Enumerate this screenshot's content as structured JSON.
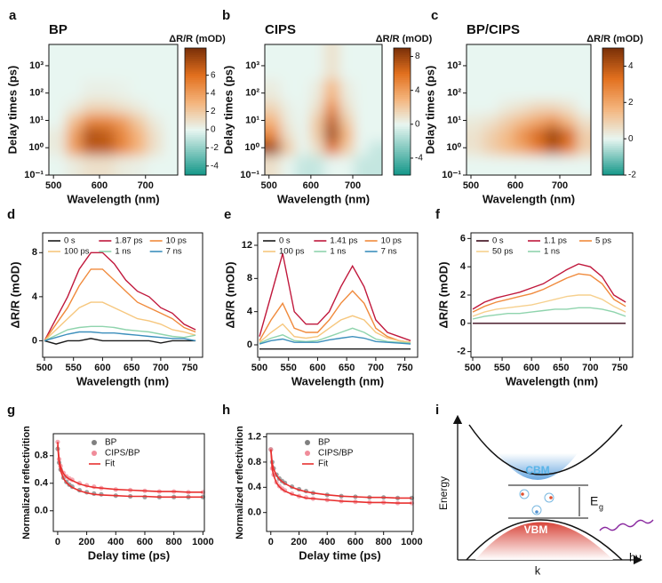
{
  "chart_data": [
    {
      "type": "heatmap",
      "panel": "a",
      "title": "BP",
      "x_label": "Wavelength (nm)",
      "y_label": "Delay times (ps)",
      "colorbar_label": "ΔR/R (mOD)",
      "x": [
        510,
        545,
        580,
        615,
        650,
        685,
        720,
        755
      ],
      "y": [
        0.3,
        1,
        3,
        10,
        30,
        100,
        1000
      ],
      "z": [
        [
          0,
          0.5,
          1,
          1,
          0.5,
          0.3,
          0,
          0
        ],
        [
          0.5,
          4,
          7,
          7,
          5,
          3,
          1,
          0
        ],
        [
          0.5,
          4,
          7.5,
          7,
          5,
          3,
          1,
          0
        ],
        [
          0,
          2.5,
          5,
          5,
          4,
          2,
          0.5,
          0
        ],
        [
          0,
          0.5,
          1.5,
          1.5,
          1,
          0.5,
          0,
          0
        ],
        [
          0,
          0,
          0.3,
          0.3,
          0.2,
          0,
          0,
          0
        ],
        [
          0,
          0,
          0,
          0,
          0,
          0,
          0,
          0
        ]
      ],
      "xlim": [
        490,
        770
      ],
      "ylim": [
        0.1,
        6000
      ],
      "ylog": true,
      "xticks": [
        500,
        600,
        700
      ],
      "yticks": [
        {
          "value": 0.1,
          "label": "10⁻¹"
        },
        {
          "value": 1,
          "label": "10⁰"
        },
        {
          "value": 10,
          "label": "10¹"
        },
        {
          "value": 100,
          "label": "10²"
        },
        {
          "value": 1000,
          "label": "10³"
        }
      ],
      "zlim": [
        -5,
        9
      ],
      "zticks": [
        -4,
        -2,
        0,
        2,
        4,
        6
      ],
      "colormap": [
        "#129688",
        "#e8f6f1",
        "#f4b47c",
        "#e2701e",
        "#7a3008"
      ]
    },
    {
      "type": "heatmap",
      "panel": "b",
      "title": "CIPS",
      "x_label": "Wavelength (nm)",
      "y_label": "Delay times (ps)",
      "colorbar_label": "ΔR/R (mOD)",
      "x": [
        510,
        545,
        580,
        615,
        650,
        685,
        720,
        755
      ],
      "y": [
        0.3,
        1,
        3,
        10,
        30,
        100,
        1000
      ],
      "z": [
        [
          1,
          0,
          -1,
          -1,
          0,
          0,
          -1,
          -1
        ],
        [
          8,
          2,
          0,
          1,
          6,
          2,
          0,
          -1
        ],
        [
          5,
          1,
          0,
          2,
          8,
          3,
          0,
          0
        ],
        [
          3,
          0.5,
          0,
          2,
          7,
          2,
          0,
          0
        ],
        [
          1.5,
          0.3,
          0,
          1,
          5,
          1,
          0,
          0
        ],
        [
          0.5,
          0,
          0,
          0.5,
          3,
          0.5,
          0,
          0
        ],
        [
          0,
          0,
          0,
          0,
          1,
          0,
          0,
          0
        ]
      ],
      "xlim": [
        490,
        770
      ],
      "ylim": [
        0.1,
        6000
      ],
      "ylog": true,
      "xticks": [
        500,
        600,
        700
      ],
      "yticks": [
        {
          "value": 0.1,
          "label": "10⁻¹"
        },
        {
          "value": 1,
          "label": "10⁰"
        },
        {
          "value": 10,
          "label": "10¹"
        },
        {
          "value": 100,
          "label": "10²"
        },
        {
          "value": 1000,
          "label": "10³"
        }
      ],
      "zlim": [
        -6,
        9
      ],
      "zticks": [
        -4,
        0,
        4,
        8
      ],
      "colormap": [
        "#129688",
        "#e8f6f1",
        "#f4b47c",
        "#e2701e",
        "#7a3008"
      ]
    },
    {
      "type": "heatmap",
      "panel": "c",
      "title": "BP/CIPS",
      "x_label": "Wavelength (nm)",
      "y_label": "Delay times (ps)",
      "colorbar_label": "ΔR/R (mOD)",
      "x": [
        510,
        545,
        580,
        615,
        650,
        685,
        720,
        755
      ],
      "y": [
        0.3,
        1,
        3,
        10,
        30,
        100,
        1000
      ],
      "z": [
        [
          0,
          0,
          0,
          0,
          0,
          0,
          0,
          0
        ],
        [
          0.5,
          1,
          1.5,
          2,
          3,
          4,
          3,
          1
        ],
        [
          0.5,
          1,
          1.5,
          2.5,
          3.5,
          4.5,
          3.5,
          1
        ],
        [
          0.3,
          0.5,
          1,
          1.5,
          2,
          2.5,
          1.5,
          0.5
        ],
        [
          0,
          0,
          0.3,
          0.5,
          0.8,
          0.8,
          0.5,
          0
        ],
        [
          0,
          0,
          0,
          0,
          0,
          0,
          0,
          0
        ],
        [
          0,
          0,
          0,
          0,
          0,
          0,
          0,
          0
        ]
      ],
      "xlim": [
        490,
        770
      ],
      "ylim": [
        0.1,
        6000
      ],
      "ylog": true,
      "xticks": [
        500,
        600,
        700
      ],
      "yticks": [
        {
          "value": 0.1,
          "label": "10⁻¹"
        },
        {
          "value": 1,
          "label": "10⁰"
        },
        {
          "value": 10,
          "label": "10¹"
        },
        {
          "value": 100,
          "label": "10²"
        },
        {
          "value": 1000,
          "label": "10³"
        }
      ],
      "zlim": [
        -2,
        5
      ],
      "zticks": [
        -2,
        0,
        2,
        4
      ],
      "colormap": [
        "#129688",
        "#e8f6f1",
        "#f4b47c",
        "#e2701e",
        "#7a3008"
      ]
    },
    {
      "type": "line",
      "panel": "d",
      "x_label": "Wavelength (nm)",
      "y_label": "ΔR/R (mOD)",
      "x": [
        500,
        520,
        540,
        560,
        580,
        600,
        620,
        640,
        660,
        680,
        700,
        720,
        740,
        760
      ],
      "xlim": [
        497,
        772
      ],
      "ylim": [
        -1.5,
        9.8
      ],
      "xticks": [
        500,
        550,
        600,
        650,
        700,
        750
      ],
      "yticks": [
        0,
        4,
        8
      ],
      "legend_columns": 3,
      "series": [
        {
          "name": "0 s",
          "color": "#1a1a1a",
          "values": [
            0,
            -0.3,
            0,
            0,
            0.2,
            0,
            0,
            0,
            0,
            0,
            -0.2,
            0,
            0,
            0
          ]
        },
        {
          "name": "1.87 ps",
          "color": "#c0183c",
          "values": [
            0,
            2,
            4,
            6.5,
            8,
            8,
            7,
            5.5,
            4.5,
            4,
            3,
            2.5,
            1.5,
            1
          ]
        },
        {
          "name": "10 ps",
          "color": "#f08a3c",
          "values": [
            0,
            1.5,
            3,
            5,
            6.5,
            6.5,
            5.5,
            4.5,
            3.5,
            3,
            2.5,
            2,
            1.2,
            0.8
          ]
        },
        {
          "name": "100 ps",
          "color": "#f6c77e",
          "values": [
            0,
            1,
            2,
            3,
            3.5,
            3.5,
            3,
            2.5,
            2,
            1.8,
            1.5,
            1,
            0.8,
            0.5
          ]
        },
        {
          "name": "1 ns",
          "color": "#8fd4ad",
          "values": [
            0,
            0.5,
            1,
            1.2,
            1.3,
            1.3,
            1.2,
            1,
            0.9,
            0.8,
            0.6,
            0.4,
            0.3,
            0.5
          ]
        },
        {
          "name": "7 ns",
          "color": "#3c8fbc",
          "values": [
            0,
            0.3,
            0.6,
            0.8,
            0.8,
            0.7,
            0.7,
            0.6,
            0.5,
            0.4,
            0.3,
            0.2,
            0.2,
            0
          ]
        }
      ]
    },
    {
      "type": "line",
      "panel": "e",
      "x_label": "Wavelength (nm)",
      "y_label": "ΔR/R (mOD)",
      "x": [
        500,
        520,
        540,
        560,
        580,
        600,
        620,
        640,
        660,
        680,
        700,
        720,
        740,
        760
      ],
      "xlim": [
        497,
        772
      ],
      "ylim": [
        -1.5,
        13.5
      ],
      "xticks": [
        500,
        550,
        600,
        650,
        700,
        750
      ],
      "yticks": [
        0,
        4,
        8,
        12
      ],
      "legend_columns": 3,
      "series": [
        {
          "name": "0 s",
          "color": "#1a1a1a",
          "values": [
            -0.5,
            -0.5,
            -0.5,
            -0.5,
            -0.5,
            -0.5,
            -0.5,
            -0.5,
            -0.5,
            -0.5,
            -0.5,
            -0.5,
            -0.5,
            -0.5
          ]
        },
        {
          "name": "1.41 ps",
          "color": "#c0183c",
          "values": [
            1,
            6,
            11,
            4,
            2.5,
            2.5,
            4,
            7,
            9.5,
            7,
            3,
            1.5,
            1,
            0.5
          ]
        },
        {
          "name": "10 ps",
          "color": "#f08a3c",
          "values": [
            0.5,
            3,
            5,
            2,
            1.5,
            1.5,
            3,
            5,
            6.5,
            5,
            2,
            1,
            0.5,
            0.3
          ]
        },
        {
          "name": "100 ps",
          "color": "#f6c77e",
          "values": [
            0.3,
            1.5,
            2.5,
            1,
            0.8,
            1,
            2,
            3,
            3.5,
            3,
            1.5,
            0.8,
            0.5,
            0.3
          ]
        },
        {
          "name": "1 ns",
          "color": "#8fd4ad",
          "values": [
            0.2,
            0.8,
            1.2,
            0.5,
            0.4,
            0.5,
            1,
            1.5,
            2,
            1.5,
            0.7,
            0.4,
            0.3,
            0.2
          ]
        },
        {
          "name": "7 ns",
          "color": "#3c8fbc",
          "values": [
            0.1,
            0.5,
            0.7,
            0.3,
            0.3,
            0.3,
            0.6,
            0.8,
            1,
            0.8,
            0.4,
            0.3,
            0.2,
            0.1
          ]
        }
      ]
    },
    {
      "type": "line",
      "panel": "f",
      "x_label": "Wavelength (nm)",
      "y_label": "ΔR/R (mOD)",
      "x": [
        500,
        520,
        540,
        560,
        580,
        600,
        620,
        640,
        660,
        680,
        700,
        720,
        740,
        760
      ],
      "xlim": [
        497,
        772
      ],
      "ylim": [
        -2.4,
        6.4
      ],
      "xticks": [
        500,
        550,
        600,
        650,
        700,
        750
      ],
      "yticks": [
        -2,
        0,
        2,
        4,
        6
      ],
      "legend_columns": 3,
      "series": [
        {
          "name": "0 s",
          "color": "#3b0a1a",
          "values": [
            0,
            0,
            0,
            0,
            0,
            0,
            0,
            0,
            0,
            0,
            0,
            0,
            0,
            0
          ]
        },
        {
          "name": "1.1 ps",
          "color": "#c0183c",
          "values": [
            1,
            1.5,
            1.8,
            2,
            2.2,
            2.5,
            2.8,
            3.3,
            3.8,
            4.2,
            4,
            3.3,
            2,
            1.5
          ]
        },
        {
          "name": "5 ps",
          "color": "#f08a3c",
          "values": [
            0.8,
            1.2,
            1.5,
            1.7,
            1.9,
            2.1,
            2.4,
            2.8,
            3.2,
            3.5,
            3.4,
            2.8,
            1.7,
            1.2
          ]
        },
        {
          "name": "50 ps",
          "color": "#f6d08e",
          "values": [
            0.5,
            0.8,
            1,
            1.1,
            1.2,
            1.3,
            1.5,
            1.7,
            1.9,
            2,
            2,
            1.7,
            1.2,
            0.8
          ]
        },
        {
          "name": "1 ns",
          "color": "#8fd4ad",
          "values": [
            0.3,
            0.5,
            0.6,
            0.7,
            0.7,
            0.8,
            0.9,
            1,
            1,
            1.1,
            1.1,
            1,
            0.8,
            0.5
          ]
        }
      ]
    },
    {
      "type": "scatter",
      "panel": "g",
      "x_label": "Delay time (ps)",
      "y_label": "Normalized reflectivition",
      "fit_label": "Fit",
      "fit_color": "#e8302f",
      "x": [
        0,
        10,
        20,
        40,
        60,
        80,
        100,
        150,
        200,
        250,
        300,
        400,
        500,
        600,
        700,
        800,
        900,
        1000
      ],
      "xlim": [
        -30,
        1010
      ],
      "ylim": [
        -0.3,
        1.12
      ],
      "xticks": [
        0,
        200,
        400,
        600,
        800,
        1000
      ],
      "yticks": [
        {
          "value": 0,
          "label": "0.0"
        },
        {
          "value": 0.4,
          "label": "0.4"
        },
        {
          "value": 0.8,
          "label": "0.8"
        }
      ],
      "series": [
        {
          "name": "BP",
          "color": "#808080",
          "values": [
            0.9,
            0.7,
            0.6,
            0.48,
            0.42,
            0.38,
            0.35,
            0.3,
            0.27,
            0.25,
            0.24,
            0.22,
            0.21,
            0.2,
            0.2,
            0.2,
            0.2,
            0.2
          ],
          "fit": [
            0.95,
            0.7,
            0.58,
            0.47,
            0.41,
            0.37,
            0.34,
            0.29,
            0.26,
            0.24,
            0.23,
            0.22,
            0.21,
            0.21,
            0.2,
            0.2,
            0.2,
            0.2
          ]
        },
        {
          "name": "CIPS/BP",
          "color": "#f08c9a",
          "values": [
            1,
            0.75,
            0.65,
            0.55,
            0.5,
            0.47,
            0.45,
            0.4,
            0.37,
            0.35,
            0.33,
            0.31,
            0.3,
            0.29,
            0.28,
            0.28,
            0.27,
            0.27
          ],
          "fit": [
            1,
            0.74,
            0.64,
            0.54,
            0.49,
            0.46,
            0.44,
            0.39,
            0.36,
            0.34,
            0.33,
            0.31,
            0.3,
            0.29,
            0.28,
            0.28,
            0.27,
            0.27
          ]
        }
      ]
    },
    {
      "type": "scatter",
      "panel": "h",
      "x_label": "Delay time (ps)",
      "y_label": "Normalized reflectivition",
      "fit_label": "Fit",
      "fit_color": "#e8302f",
      "x": [
        0,
        10,
        20,
        40,
        60,
        80,
        100,
        150,
        200,
        250,
        300,
        400,
        500,
        600,
        700,
        800,
        900,
        1000
      ],
      "xlim": [
        -30,
        1010
      ],
      "ylim": [
        -0.3,
        1.25
      ],
      "xticks": [
        0,
        200,
        400,
        600,
        800,
        1000
      ],
      "yticks": [
        {
          "value": 0,
          "label": "0.0"
        },
        {
          "value": 0.4,
          "label": "0.4"
        },
        {
          "value": 0.8,
          "label": "0.8"
        },
        {
          "value": 1.2,
          "label": "1.2"
        }
      ],
      "series": [
        {
          "name": "BP",
          "color": "#808080",
          "values": [
            1,
            0.8,
            0.7,
            0.6,
            0.54,
            0.5,
            0.47,
            0.41,
            0.37,
            0.34,
            0.31,
            0.28,
            0.26,
            0.25,
            0.24,
            0.24,
            0.23,
            0.23
          ],
          "fit": [
            1,
            0.79,
            0.69,
            0.59,
            0.53,
            0.49,
            0.46,
            0.4,
            0.36,
            0.33,
            0.31,
            0.28,
            0.26,
            0.25,
            0.24,
            0.24,
            0.23,
            0.23
          ]
        },
        {
          "name": "CIPS/BP",
          "color": "#f08c9a",
          "values": [
            1,
            0.7,
            0.6,
            0.48,
            0.42,
            0.38,
            0.35,
            0.3,
            0.26,
            0.24,
            0.22,
            0.2,
            0.18,
            0.17,
            0.16,
            0.16,
            0.15,
            0.15
          ],
          "fit": [
            1,
            0.69,
            0.59,
            0.47,
            0.41,
            0.37,
            0.34,
            0.29,
            0.26,
            0.23,
            0.22,
            0.2,
            0.18,
            0.17,
            0.16,
            0.16,
            0.15,
            0.15
          ]
        }
      ]
    }
  ],
  "diagram": {
    "panel": "i",
    "y_label": "Energy",
    "x_label": "k",
    "cbm": "CBM",
    "vbm": "VBM",
    "gap": "E",
    "gap_sub": "g",
    "photon": "hν"
  }
}
